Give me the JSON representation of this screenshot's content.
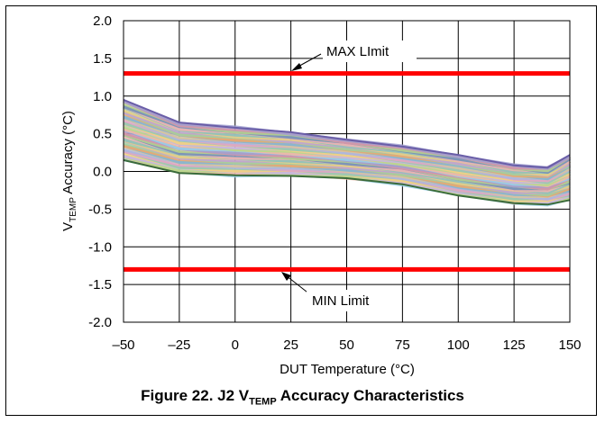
{
  "chart_data": {
    "type": "line",
    "xlabel": "DUT Temperature (°C)",
    "ylabel": {
      "prefix": "V",
      "subscript": "TEMP",
      "suffix": " Accuracy (°C)"
    },
    "xlim": [
      -50,
      150
    ],
    "ylim": [
      -2.0,
      2.0
    ],
    "x_ticks": [
      -50,
      -25,
      0,
      25,
      50,
      75,
      100,
      125,
      150
    ],
    "x_tick_labels": [
      "–50",
      "–25",
      "0",
      "25",
      "50",
      "75",
      "100",
      "125",
      "150"
    ],
    "y_ticks": [
      2.0,
      1.5,
      1.0,
      0.5,
      0.0,
      -0.5,
      -1.0,
      -1.5,
      -2.0
    ],
    "y_tick_labels": [
      "2.0",
      "1.5",
      "1.0",
      "0.5",
      "0.0",
      "-0.5",
      "-1.0",
      "-1.5",
      "-2.0"
    ],
    "grid": true,
    "limits": [
      {
        "name": "MAX LImit",
        "value": 1.3,
        "color": "#ff0000"
      },
      {
        "name": "MIN Limit",
        "value": -1.3,
        "color": "#ff0000"
      }
    ],
    "x": [
      -50,
      -25,
      0,
      25,
      50,
      75,
      100,
      125,
      140,
      150
    ],
    "envelope": {
      "upper": [
        0.95,
        0.65,
        0.58,
        0.52,
        0.42,
        0.33,
        0.22,
        0.08,
        0.05,
        0.22
      ],
      "lower": [
        0.15,
        -0.02,
        -0.05,
        -0.06,
        -0.09,
        -0.17,
        -0.32,
        -0.42,
        -0.44,
        -0.38
      ]
    },
    "series_count": 40
  },
  "annotations": {
    "max_label": "MAX LImit",
    "min_label": "MIN Limit"
  },
  "caption": {
    "text_before": "Figure 22. J2 V",
    "subscript": "TEMP",
    "text_after": " Accuracy Characteristics"
  }
}
